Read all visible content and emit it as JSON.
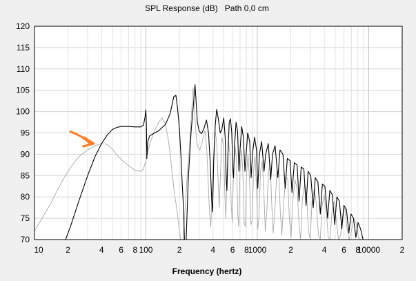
{
  "chart_data": {
    "type": "line",
    "title": "SPL Response (dB)   Path 0,0 cm",
    "xlabel": "Frequency (hertz)",
    "ylabel": "",
    "x_scale": "log",
    "xlim": [
      10,
      20000
    ],
    "ylim": [
      70,
      120
    ],
    "grid": true,
    "y_ticks": [
      70,
      75,
      80,
      85,
      90,
      95,
      100,
      105,
      110,
      115,
      120
    ],
    "y_tick_labels": [
      "70",
      "75",
      "80",
      "85",
      "90",
      "95",
      "100",
      "105",
      "110",
      "115",
      "120"
    ],
    "x_ticks": [
      10,
      20,
      40,
      60,
      80,
      100,
      200,
      400,
      600,
      800,
      1000,
      2000,
      4000,
      6000,
      8000,
      10000,
      20000
    ],
    "x_tick_labels": [
      "10",
      "2",
      "4",
      "6",
      "8",
      "100",
      "2",
      "4",
      "6",
      "8",
      "1000",
      "2",
      "4",
      "6",
      "8",
      "10000",
      "2"
    ],
    "series": [
      {
        "color": "#000000",
        "points": [
          [
            19,
            70
          ],
          [
            21,
            73
          ],
          [
            25,
            79
          ],
          [
            30,
            85
          ],
          [
            35,
            89.5
          ],
          [
            40,
            92.5
          ],
          [
            45,
            94.5
          ],
          [
            50,
            95.8
          ],
          [
            55,
            96.3
          ],
          [
            60,
            96.5
          ],
          [
            70,
            96.5
          ],
          [
            80,
            96.4
          ],
          [
            90,
            96.4
          ],
          [
            95,
            96.8
          ],
          [
            98,
            98.5
          ],
          [
            100,
            100.4
          ],
          [
            101,
            97
          ],
          [
            102,
            89
          ],
          [
            104,
            93
          ],
          [
            108,
            94.3
          ],
          [
            120,
            95
          ],
          [
            130,
            95.5
          ],
          [
            150,
            97
          ],
          [
            165,
            99.5
          ],
          [
            178,
            103.5
          ],
          [
            186,
            103.8
          ],
          [
            192,
            101
          ],
          [
            200,
            96
          ],
          [
            206,
            90
          ],
          [
            212,
            83
          ],
          [
            218,
            77
          ],
          [
            222,
            70
          ],
          [
            230,
            70
          ],
          [
            240,
            84
          ],
          [
            255,
            95.5
          ],
          [
            268,
            102
          ],
          [
            276,
            106.3
          ],
          [
            283,
            102
          ],
          [
            290,
            97.5
          ],
          [
            300,
            95.5
          ],
          [
            315,
            94.8
          ],
          [
            330,
            95.8
          ],
          [
            350,
            98
          ],
          [
            365,
            95
          ],
          [
            378,
            88
          ],
          [
            390,
            79
          ],
          [
            397,
            76.5
          ],
          [
            406,
            88
          ],
          [
            420,
            97
          ],
          [
            432,
            100.5
          ],
          [
            446,
            98.5
          ],
          [
            465,
            95
          ],
          [
            480,
            95.7
          ],
          [
            500,
            98.5
          ],
          [
            515,
            94
          ],
          [
            526,
            84
          ],
          [
            534,
            81.5
          ],
          [
            545,
            90
          ],
          [
            560,
            97.5
          ],
          [
            575,
            98.3
          ],
          [
            590,
            95
          ],
          [
            605,
            86
          ],
          [
            612,
            84.5
          ],
          [
            625,
            92
          ],
          [
            645,
            97.5
          ],
          [
            665,
            95.5
          ],
          [
            685,
            86
          ],
          [
            700,
            91
          ],
          [
            725,
            96.5
          ],
          [
            750,
            94
          ],
          [
            775,
            86
          ],
          [
            790,
            89
          ],
          [
            820,
            95
          ],
          [
            855,
            93
          ],
          [
            880,
            84.5
          ],
          [
            905,
            90
          ],
          [
            945,
            94
          ],
          [
            985,
            91
          ],
          [
            1010,
            82
          ],
          [
            1045,
            90
          ],
          [
            1095,
            93
          ],
          [
            1150,
            86
          ],
          [
            1190,
            90
          ],
          [
            1255,
            92.5
          ],
          [
            1320,
            84
          ],
          [
            1370,
            90
          ],
          [
            1445,
            92
          ],
          [
            1530,
            84.5
          ],
          [
            1600,
            91
          ],
          [
            1700,
            90
          ],
          [
            1780,
            82
          ],
          [
            1860,
            89
          ],
          [
            1970,
            88.5
          ],
          [
            2050,
            81
          ],
          [
            2150,
            88
          ],
          [
            2280,
            87.5
          ],
          [
            2370,
            79
          ],
          [
            2480,
            87
          ],
          [
            2620,
            86.5
          ],
          [
            2740,
            78
          ],
          [
            2860,
            86
          ],
          [
            3020,
            85
          ],
          [
            3180,
            77.5
          ],
          [
            3320,
            84.5
          ],
          [
            3500,
            83.5
          ],
          [
            3680,
            76
          ],
          [
            3840,
            83
          ],
          [
            4050,
            82.5
          ],
          [
            4280,
            75
          ],
          [
            4480,
            81.5
          ],
          [
            4720,
            80.5
          ],
          [
            4960,
            73.5
          ],
          [
            5180,
            80
          ],
          [
            5460,
            79
          ],
          [
            5740,
            72.5
          ],
          [
            5990,
            78
          ],
          [
            6320,
            77
          ],
          [
            6640,
            71.5
          ],
          [
            6940,
            76
          ],
          [
            7300,
            75
          ],
          [
            7680,
            70.5
          ],
          [
            8030,
            74
          ],
          [
            8460,
            72.5
          ],
          [
            8900,
            70
          ]
        ]
      },
      {
        "color": "#a8a8a8",
        "points": [
          [
            10,
            72
          ],
          [
            12,
            75.5
          ],
          [
            14,
            78.5
          ],
          [
            16,
            81.5
          ],
          [
            18,
            84
          ],
          [
            20,
            86
          ],
          [
            23,
            88.3
          ],
          [
            26,
            89.8
          ],
          [
            30,
            91
          ],
          [
            35,
            92
          ],
          [
            40,
            92.5
          ],
          [
            45,
            92.3
          ],
          [
            50,
            91.2
          ],
          [
            55,
            89.8
          ],
          [
            60,
            88.8
          ],
          [
            70,
            87.3
          ],
          [
            80,
            86.2
          ],
          [
            90,
            86
          ],
          [
            95,
            86.5
          ],
          [
            100,
            88.5
          ],
          [
            110,
            93
          ],
          [
            120,
            95.5
          ],
          [
            130,
            97.5
          ],
          [
            140,
            98.5
          ],
          [
            150,
            97
          ],
          [
            160,
            93
          ],
          [
            170,
            87
          ],
          [
            180,
            81
          ],
          [
            190,
            77
          ],
          [
            200,
            72
          ],
          [
            205,
            70
          ],
          [
            215,
            70
          ],
          [
            225,
            77
          ],
          [
            235,
            85
          ],
          [
            248,
            93
          ],
          [
            258,
            100.5
          ],
          [
            265,
            105.5
          ],
          [
            270,
            103
          ],
          [
            278,
            97
          ],
          [
            286,
            93
          ],
          [
            295,
            91.5
          ],
          [
            305,
            91
          ],
          [
            318,
            92.5
          ],
          [
            330,
            94.5
          ],
          [
            340,
            95.5
          ],
          [
            352,
            91
          ],
          [
            362,
            84
          ],
          [
            372,
            77
          ],
          [
            382,
            73
          ],
          [
            392,
            80
          ],
          [
            405,
            90
          ],
          [
            418,
            95.5
          ],
          [
            432,
            93
          ],
          [
            446,
            83
          ],
          [
            456,
            77.5
          ],
          [
            468,
            86
          ],
          [
            482,
            94
          ],
          [
            498,
            92
          ],
          [
            512,
            80
          ],
          [
            522,
            75
          ],
          [
            536,
            86
          ],
          [
            552,
            93
          ],
          [
            568,
            90
          ],
          [
            584,
            78
          ],
          [
            596,
            74
          ],
          [
            612,
            86
          ],
          [
            630,
            92
          ],
          [
            650,
            89
          ],
          [
            668,
            76
          ],
          [
            682,
            73
          ],
          [
            700,
            86
          ],
          [
            722,
            91
          ],
          [
            742,
            86
          ],
          [
            762,
            74
          ],
          [
            780,
            73
          ],
          [
            800,
            85
          ],
          [
            826,
            90
          ],
          [
            852,
            84
          ],
          [
            876,
            73.5
          ],
          [
            900,
            74.5
          ],
          [
            925,
            86
          ],
          [
            955,
            89.5
          ],
          [
            985,
            82
          ],
          [
            1010,
            72.5
          ],
          [
            1035,
            75
          ],
          [
            1070,
            86
          ],
          [
            1110,
            88.5
          ],
          [
            1150,
            80
          ],
          [
            1180,
            72
          ],
          [
            1215,
            76
          ],
          [
            1260,
            86
          ],
          [
            1310,
            87.5
          ],
          [
            1350,
            78
          ],
          [
            1390,
            71.5
          ],
          [
            1440,
            77
          ],
          [
            1500,
            86
          ],
          [
            1560,
            86
          ],
          [
            1610,
            76.5
          ],
          [
            1660,
            71
          ],
          [
            1720,
            78
          ],
          [
            1800,
            85
          ],
          [
            1880,
            84
          ],
          [
            1940,
            75
          ],
          [
            2010,
            70.5
          ],
          [
            2080,
            79
          ],
          [
            2180,
            84
          ],
          [
            2280,
            82
          ],
          [
            2370,
            73.5
          ],
          [
            2450,
            70
          ],
          [
            2540,
            79.5
          ],
          [
            2660,
            83
          ],
          [
            2780,
            80
          ],
          [
            2880,
            72
          ],
          [
            2990,
            70
          ],
          [
            3100,
            79
          ],
          [
            3250,
            82
          ],
          [
            3400,
            78
          ],
          [
            3540,
            71
          ],
          [
            3680,
            70
          ],
          [
            3820,
            78
          ],
          [
            4000,
            80.5
          ],
          [
            4180,
            76
          ],
          [
            4340,
            70.5
          ],
          [
            4500,
            70
          ],
          [
            4700,
            77
          ],
          [
            4920,
            79
          ],
          [
            5140,
            74
          ],
          [
            5360,
            70
          ],
          [
            5600,
            71
          ],
          [
            5860,
            76
          ],
          [
            6120,
            77.5
          ],
          [
            6400,
            72.5
          ],
          [
            6700,
            70
          ],
          [
            7000,
            72
          ],
          [
            7350,
            75
          ],
          [
            7700,
            74
          ],
          [
            8100,
            70.5
          ],
          [
            8500,
            70
          ]
        ]
      }
    ],
    "annotation": {
      "type": "arrow",
      "color": "#ff7f27",
      "from": [
        21,
        95.3
      ],
      "to": [
        33,
        92.5
      ]
    }
  }
}
